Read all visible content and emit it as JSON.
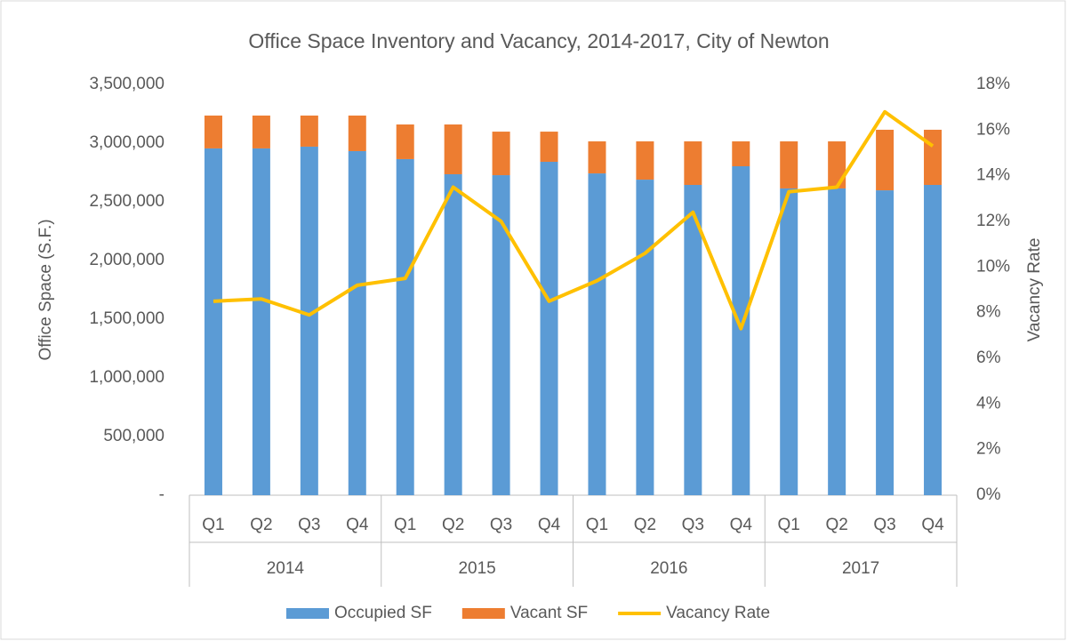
{
  "chart_data": {
    "type": "bar",
    "title": "Office Space Inventory and Vacancy, 2014-2017, City of Newton",
    "y_label": "Office Space (S.F.)",
    "y2_label": "Vacancy Rate",
    "categories": [
      "Q1",
      "Q2",
      "Q3",
      "Q4",
      "Q1",
      "Q2",
      "Q3",
      "Q4",
      "Q1",
      "Q2",
      "Q3",
      "Q4",
      "Q1",
      "Q2",
      "Q3",
      "Q4"
    ],
    "category_groups": [
      "2014",
      "2015",
      "2016",
      "2017"
    ],
    "stacked": true,
    "series": [
      {
        "name": "Occupied SF",
        "type": "bar",
        "color": "#5b9bd5",
        "values": [
          2955000,
          2955000,
          2970000,
          2932000,
          2864000,
          2735000,
          2727000,
          2841000,
          2742000,
          2689000,
          2644000,
          2803000,
          2614000,
          2614000,
          2598000,
          2644000
        ]
      },
      {
        "name": "Vacant SF",
        "type": "bar",
        "color": "#ed7d31",
        "values": [
          280000,
          280000,
          265000,
          303000,
          295000,
          424000,
          371000,
          257000,
          273000,
          326000,
          371000,
          212000,
          401000,
          401000,
          516000,
          470000
        ]
      },
      {
        "name": "Vacancy Rate",
        "type": "line",
        "axis": "y2",
        "color": "#ffc000",
        "values": [
          8.5,
          8.6,
          7.9,
          9.2,
          9.5,
          13.5,
          12.0,
          8.5,
          9.4,
          10.6,
          12.4,
          7.3,
          13.3,
          13.5,
          16.8,
          15.3
        ]
      }
    ],
    "ylim": [
      0,
      3500000
    ],
    "yticks": [
      {
        "value": 0,
        "label": "-"
      },
      {
        "value": 500000,
        "label": "500,000"
      },
      {
        "value": 1000000,
        "label": "1,000,000"
      },
      {
        "value": 1500000,
        "label": "1,500,000"
      },
      {
        "value": 2000000,
        "label": "2,000,000"
      },
      {
        "value": 2500000,
        "label": "2,500,000"
      },
      {
        "value": 3000000,
        "label": "3,000,000"
      },
      {
        "value": 3500000,
        "label": "3,500,000"
      }
    ],
    "y2lim": [
      0,
      18
    ],
    "y2ticks": [
      {
        "value": 0,
        "label": "0%"
      },
      {
        "value": 2,
        "label": "2%"
      },
      {
        "value": 4,
        "label": "4%"
      },
      {
        "value": 6,
        "label": "6%"
      },
      {
        "value": 8,
        "label": "8%"
      },
      {
        "value": 10,
        "label": "10%"
      },
      {
        "value": 12,
        "label": "12%"
      },
      {
        "value": 14,
        "label": "14%"
      },
      {
        "value": 16,
        "label": "16%"
      },
      {
        "value": 18,
        "label": "18%"
      }
    ],
    "grid": false,
    "legend": "bottom"
  }
}
